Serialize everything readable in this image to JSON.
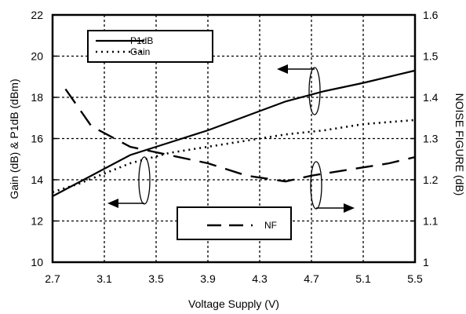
{
  "chart_data": {
    "type": "line",
    "xlabel": "Voltage Supply (V)",
    "ylabel_left": "Gain (dB) & P1dB (dBm)",
    "ylabel_right": "NOISE FIGURE (dB)",
    "x_ticks": [
      "2.7",
      "3.1",
      "3.5",
      "3.9",
      "4.3",
      "4.7",
      "5.1",
      "5.5"
    ],
    "y_left_ticks": [
      "10",
      "12",
      "14",
      "16",
      "18",
      "20",
      "22"
    ],
    "y_right_ticks": [
      "1",
      "1.1",
      "1.2",
      "1.3",
      "1.4",
      "1.5",
      "1.6"
    ],
    "xlim": [
      2.7,
      5.5
    ],
    "ylim_left": [
      10,
      22
    ],
    "ylim_right": [
      1.0,
      1.6
    ],
    "grid": true,
    "series": [
      {
        "name": "P1dB",
        "axis": "left",
        "style": "solid",
        "x": [
          2.7,
          3.0,
          3.3,
          3.6,
          3.9,
          4.2,
          4.5,
          4.8,
          5.1,
          5.5
        ],
        "y": [
          13.2,
          14.2,
          15.2,
          15.8,
          16.4,
          17.1,
          17.8,
          18.3,
          18.7,
          19.3
        ]
      },
      {
        "name": "Gain",
        "axis": "left",
        "style": "dotted",
        "x": [
          2.7,
          2.9,
          3.1,
          3.3,
          3.6,
          3.9,
          4.2,
          4.5,
          4.8,
          5.1,
          5.5
        ],
        "y": [
          13.4,
          13.8,
          14.3,
          14.8,
          15.3,
          15.6,
          15.9,
          16.2,
          16.4,
          16.7,
          16.9
        ]
      },
      {
        "name": "NF",
        "axis": "right",
        "style": "dashed",
        "x": [
          2.8,
          3.0,
          3.3,
          3.6,
          3.9,
          4.2,
          4.5,
          4.7,
          5.0,
          5.3,
          5.5
        ],
        "y": [
          1.42,
          1.33,
          1.28,
          1.26,
          1.24,
          1.21,
          1.196,
          1.21,
          1.225,
          1.24,
          1.255
        ]
      }
    ],
    "legend_upper": [
      "P1dB",
      "Gain"
    ],
    "legend_lower": [
      "NF"
    ],
    "colors": {
      "lines": "#000000",
      "grid": "#000000",
      "background": "#ffffff"
    }
  }
}
